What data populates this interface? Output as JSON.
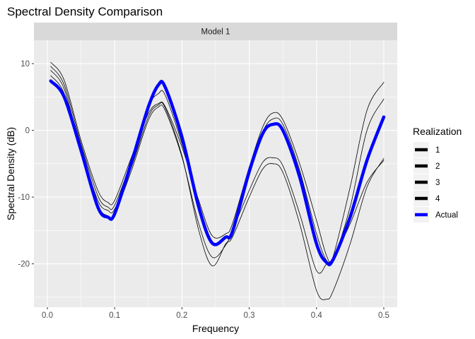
{
  "chart_data": {
    "type": "line",
    "title": "Spectral Density Comparison",
    "facet_label": "Model 1",
    "xlabel": "Frequency",
    "ylabel": "Spectral Density (dB)",
    "xlim": [
      -0.02,
      0.52
    ],
    "ylim": [
      -26.5,
      13.5
    ],
    "x_ticks": [
      0.0,
      0.1,
      0.2,
      0.3,
      0.4,
      0.5
    ],
    "x_tick_labels": [
      "0.0",
      "0.1",
      "0.2",
      "0.3",
      "0.4",
      "0.5"
    ],
    "y_ticks": [
      -20,
      -10,
      0,
      10
    ],
    "y_tick_labels": [
      "-20",
      "-10",
      "0",
      "10"
    ],
    "grid": true,
    "legend": {
      "title": "Realization",
      "position": "right"
    },
    "colors": {
      "realization": "#000000",
      "actual": "#0000ff",
      "panel": "#ebebeb",
      "strip": "#d9d9d9",
      "grid": "#ffffff"
    },
    "x": [
      0.005,
      0.025,
      0.05,
      0.075,
      0.09,
      0.1,
      0.125,
      0.15,
      0.165,
      0.175,
      0.2,
      0.225,
      0.245,
      0.265,
      0.275,
      0.3,
      0.32,
      0.335,
      0.35,
      0.375,
      0.4,
      0.415,
      0.425,
      0.45,
      0.475,
      0.5
    ],
    "series": [
      {
        "name": "1",
        "values": [
          10.2,
          7.5,
          -1.5,
          -9.0,
          -10.8,
          -10.5,
          -4.0,
          2.5,
          4.0,
          3.6,
          -2.5,
          -10.5,
          -15.8,
          -15.5,
          -14.0,
          -5.5,
          0.5,
          2.6,
          1.6,
          -5.0,
          -13.5,
          -18.8,
          -19.2,
          -11.5,
          0.0,
          4.7
        ]
      },
      {
        "name": "2",
        "values": [
          9.6,
          6.8,
          -2.0,
          -9.8,
          -11.5,
          -11.2,
          -4.5,
          3.5,
          5.5,
          5.3,
          -2.0,
          -11.0,
          -17.0,
          -16.0,
          -15.5,
          -6.0,
          -0.2,
          1.7,
          0.9,
          -6.0,
          -15.5,
          -19.5,
          -18.8,
          -8.5,
          3.0,
          7.2
        ]
      },
      {
        "name": "3",
        "values": [
          9.0,
          6.2,
          -2.8,
          -10.5,
          -12.0,
          -11.8,
          -5.5,
          2.0,
          3.8,
          3.4,
          -3.8,
          -15.0,
          -20.3,
          -17.0,
          -16.0,
          -10.0,
          -5.8,
          -5.0,
          -6.3,
          -14.0,
          -24.0,
          -25.3,
          -24.0,
          -17.0,
          -8.5,
          -4.2
        ]
      },
      {
        "name": "4",
        "values": [
          8.2,
          5.5,
          -3.2,
          -11.2,
          -12.8,
          -12.5,
          -6.0,
          1.5,
          3.5,
          3.0,
          -4.0,
          -14.0,
          -19.0,
          -17.2,
          -15.0,
          -9.0,
          -4.8,
          -4.1,
          -5.3,
          -12.5,
          -21.0,
          -20.0,
          -19.0,
          -14.0,
          -7.8,
          -4.5
        ]
      },
      {
        "name": "Actual",
        "values": [
          7.4,
          5.0,
          -3.0,
          -11.5,
          -13.0,
          -12.5,
          -4.8,
          3.5,
          6.8,
          6.5,
          -1.0,
          -11.5,
          -16.9,
          -16.0,
          -15.2,
          -6.2,
          -0.5,
          0.9,
          0.0,
          -7.0,
          -17.0,
          -19.8,
          -19.3,
          -13.0,
          -4.5,
          2.0
        ]
      }
    ]
  }
}
